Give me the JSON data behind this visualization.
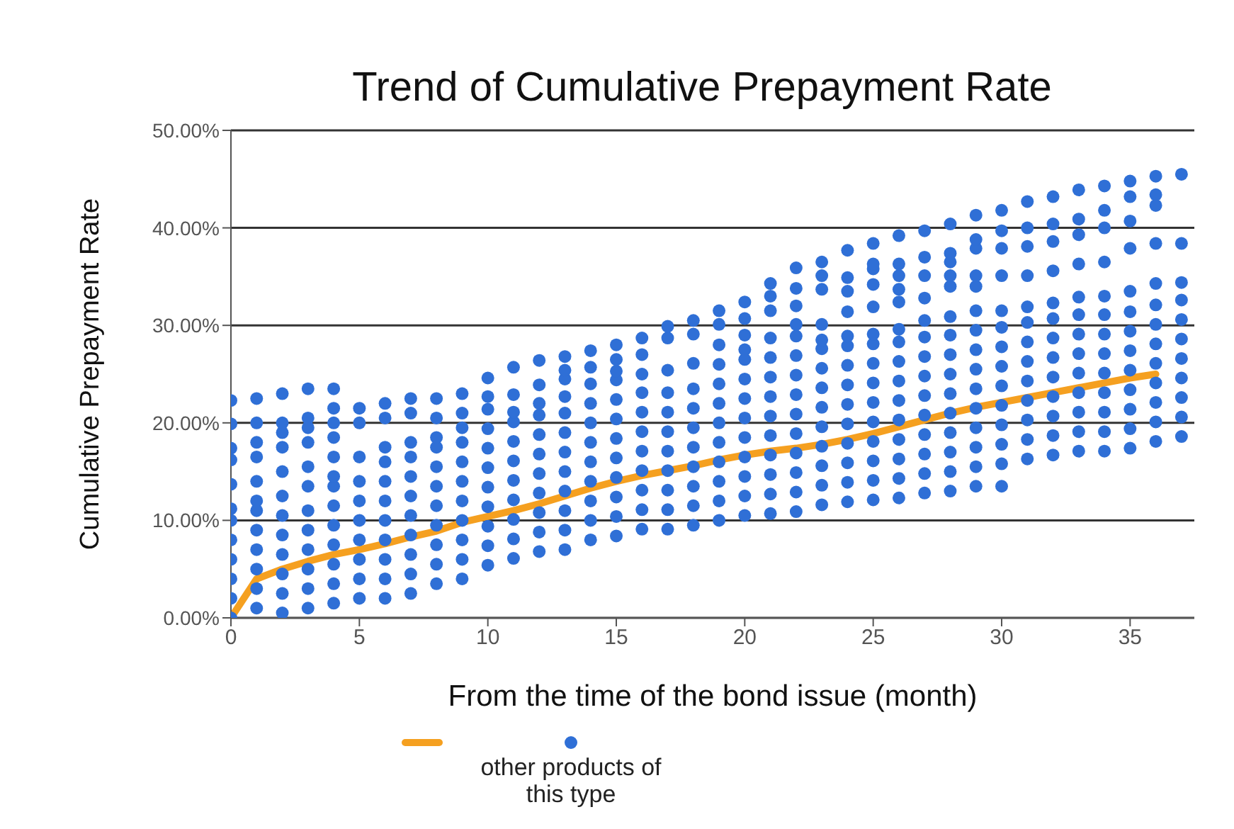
{
  "chart_data": {
    "type": "scatter",
    "title": "Trend of Cumulative Prepayment Rate",
    "xlabel": "From the time of the bond issue (month)",
    "ylabel": "Cumulative Prepayment Rate",
    "xlim": [
      0,
      37.5
    ],
    "xticks": [
      0,
      5,
      10,
      15,
      20,
      25,
      30,
      35
    ],
    "ylim": [
      0,
      50
    ],
    "yticks": [
      {
        "value": 0,
        "label": "0.00%"
      },
      {
        "value": 10,
        "label": "10.00%"
      },
      {
        "value": 20,
        "label": "20.00%"
      },
      {
        "value": 30,
        "label": "30.00%"
      },
      {
        "value": 40,
        "label": "40.00%"
      },
      {
        "value": 50,
        "label": "50.00%"
      }
    ],
    "grid": "y",
    "legend": "bottom",
    "marker": "circle",
    "series": [
      {
        "type": "line",
        "color": "#f5a020",
        "marker": "none",
        "line_style": "solid",
        "x": [
          0,
          1,
          2,
          3,
          4,
          5,
          6,
          7,
          8,
          9,
          10,
          11,
          12,
          13,
          14,
          15,
          16,
          17,
          18,
          19,
          20,
          21,
          22,
          23,
          24,
          25,
          26,
          27,
          28,
          29,
          30,
          31,
          32,
          33,
          34,
          35,
          36
        ],
        "values": [
          0,
          4,
          5,
          5.8,
          6.5,
          7,
          7.6,
          8.3,
          8.9,
          9.8,
          10.4,
          11,
          11.7,
          12.5,
          13.3,
          14,
          14.6,
          15.1,
          15.6,
          16.2,
          16.7,
          17.1,
          17.4,
          17.8,
          18.3,
          18.9,
          19.6,
          20.3,
          21,
          21.6,
          22.1,
          22.6,
          23.1,
          23.6,
          24.1,
          24.6,
          25
        ]
      },
      {
        "name": "other products of this type",
        "color": "#2f6fd6",
        "x": [
          0,
          0,
          0,
          0,
          0,
          0,
          0,
          0,
          0,
          0,
          0,
          0,
          1,
          1,
          1,
          1,
          1,
          1,
          1,
          1,
          1,
          1,
          1,
          1,
          2,
          2,
          2,
          2,
          2,
          2,
          2,
          2,
          2,
          2,
          2,
          2,
          3,
          3,
          3,
          3,
          3,
          3,
          3,
          3,
          3,
          3,
          3,
          3,
          4,
          4,
          4,
          4,
          4,
          4,
          4,
          4,
          4,
          4,
          4,
          4,
          4,
          5,
          5,
          5,
          5,
          5,
          5,
          5,
          5,
          5,
          5,
          6,
          6,
          6,
          6,
          6,
          6,
          6,
          6,
          6,
          6,
          6,
          7,
          7,
          7,
          7,
          7,
          7,
          7,
          7,
          7,
          7,
          7,
          8,
          8,
          8,
          8,
          8,
          8,
          8,
          8,
          8,
          8,
          8,
          9,
          9,
          9,
          9,
          9,
          9,
          9,
          9,
          9,
          9,
          9,
          10,
          10,
          10,
          10,
          10,
          10,
          10,
          10,
          10,
          10,
          10,
          11,
          11,
          11,
          11,
          11,
          11,
          11,
          11,
          11,
          11,
          11,
          12,
          12,
          12,
          12,
          12,
          12,
          12,
          12,
          12,
          12,
          12,
          13,
          13,
          13,
          13,
          13,
          13,
          13,
          13,
          13,
          13,
          13,
          13,
          14,
          14,
          14,
          14,
          14,
          14,
          14,
          14,
          14,
          14,
          14,
          15,
          15,
          15,
          15,
          15,
          15,
          15,
          15,
          15,
          15,
          15,
          15,
          16,
          16,
          16,
          16,
          16,
          16,
          16,
          16,
          16,
          16,
          16,
          17,
          17,
          17,
          17,
          17,
          17,
          17,
          17,
          17,
          17,
          17,
          18,
          18,
          18,
          18,
          18,
          18,
          18,
          18,
          18,
          18,
          18,
          19,
          19,
          19,
          19,
          19,
          19,
          19,
          19,
          19,
          19,
          19,
          19,
          20,
          20,
          20,
          20,
          20,
          20,
          20,
          20,
          20,
          20,
          20,
          20,
          20,
          21,
          21,
          21,
          21,
          21,
          21,
          21,
          21,
          21,
          21,
          21,
          21,
          21,
          22,
          22,
          22,
          22,
          22,
          22,
          22,
          22,
          22,
          22,
          22,
          22,
          22,
          22,
          23,
          23,
          23,
          23,
          23,
          23,
          23,
          23,
          23,
          23,
          23,
          23,
          23,
          23,
          24,
          24,
          24,
          24,
          24,
          24,
          24,
          24,
          24,
          24,
          24,
          24,
          24,
          24,
          25,
          25,
          25,
          25,
          25,
          25,
          25,
          25,
          25,
          25,
          25,
          25,
          25,
          25,
          25,
          26,
          26,
          26,
          26,
          26,
          26,
          26,
          26,
          26,
          26,
          26,
          26,
          26,
          26,
          26,
          27,
          27,
          27,
          27,
          27,
          27,
          27,
          27,
          27,
          27,
          27,
          27,
          27,
          27,
          28,
          28,
          28,
          28,
          28,
          28,
          28,
          28,
          28,
          28,
          28,
          28,
          28,
          28,
          28,
          29,
          29,
          29,
          29,
          29,
          29,
          29,
          29,
          29,
          29,
          29,
          29,
          29,
          29,
          29,
          30,
          30,
          30,
          30,
          30,
          30,
          30,
          30,
          30,
          30,
          30,
          30,
          30,
          30,
          31,
          31,
          31,
          31,
          31,
          31,
          31,
          31,
          31,
          31,
          31,
          31,
          31,
          32,
          32,
          32,
          32,
          32,
          32,
          32,
          32,
          32,
          32,
          32,
          32,
          32,
          33,
          33,
          33,
          33,
          33,
          33,
          33,
          33,
          33,
          33,
          33,
          33,
          33,
          34,
          34,
          34,
          34,
          34,
          34,
          34,
          34,
          34,
          34,
          34,
          34,
          34,
          35,
          35,
          35,
          35,
          35,
          35,
          35,
          35,
          35,
          35,
          35,
          35,
          35,
          36,
          36,
          36,
          36,
          36,
          36,
          36,
          36,
          36,
          36,
          36,
          36,
          36,
          37,
          37,
          37,
          37,
          37,
          37,
          37,
          37,
          37,
          37,
          37
        ],
        "values": [
          0,
          2,
          4,
          6,
          8,
          10,
          11.2,
          13.7,
          16.2,
          17.4,
          19.9,
          22.3,
          1,
          3,
          5,
          7,
          9,
          11,
          12,
          14,
          16.5,
          18,
          20,
          22.5,
          0.5,
          2.5,
          4.5,
          6.5,
          8.5,
          10.5,
          12.5,
          15,
          17.5,
          19,
          20,
          23,
          1,
          3,
          5,
          7,
          9,
          11,
          13.5,
          15.5,
          18,
          19.5,
          20.5,
          23.5,
          1.5,
          3.5,
          5.5,
          7.5,
          9.5,
          11.5,
          13.5,
          14.5,
          16.5,
          18.5,
          20,
          21.5,
          23.5,
          2,
          4,
          6,
          8,
          10,
          12,
          14,
          16.5,
          20,
          21.5,
          2,
          4,
          6,
          8,
          10,
          12,
          14,
          16,
          17.5,
          20.5,
          22,
          2.5,
          4.5,
          6.5,
          8.5,
          10.5,
          12.5,
          14.5,
          16.5,
          18,
          21,
          22.5,
          3.5,
          5.5,
          7.5,
          9.5,
          11.5,
          13.5,
          15.5,
          17.5,
          18.5,
          20.5,
          22.5,
          4,
          6,
          8,
          10,
          12,
          14,
          16,
          18,
          19.5,
          21,
          23,
          5.4,
          7.4,
          9.4,
          11.4,
          13.4,
          15.4,
          17.4,
          19.4,
          21.4,
          22.7,
          24.6,
          6.1,
          8.1,
          10.1,
          12.1,
          14.1,
          16.1,
          18.1,
          20.1,
          21.1,
          22.9,
          25.7,
          6.8,
          8.8,
          10.8,
          12.8,
          14.8,
          16.8,
          18.8,
          20.8,
          22,
          23.9,
          26.4,
          7,
          9,
          11,
          13,
          15,
          17,
          19,
          21,
          22.7,
          24.5,
          25.4,
          26.8,
          8,
          10,
          12,
          14,
          16,
          18,
          20,
          22,
          24,
          25.7,
          27.4,
          8.4,
          10.4,
          12.4,
          14.4,
          16.4,
          18.4,
          20.4,
          22.4,
          24.4,
          25.3,
          26.5,
          28,
          9.1,
          11.1,
          13.1,
          15.1,
          17.1,
          19.1,
          21.1,
          23.1,
          25,
          27,
          28.7,
          9.1,
          11.1,
          13.1,
          15.1,
          17.1,
          19.1,
          21.1,
          23.1,
          25.4,
          28.7,
          29.9,
          9.5,
          11.5,
          13.5,
          15.5,
          17.5,
          19.5,
          21.5,
          23.5,
          26.1,
          29.1,
          30.5,
          10,
          12,
          14,
          16,
          18,
          20,
          22,
          24,
          26,
          28,
          30.1,
          31.5,
          10.5,
          12.5,
          14.5,
          16.5,
          18.5,
          20.5,
          22.5,
          24.5,
          26.5,
          27.5,
          29,
          30.7,
          32.4,
          10.7,
          12.7,
          14.7,
          16.7,
          18.7,
          20.7,
          22.7,
          24.7,
          26.7,
          28.7,
          31.5,
          33,
          34.3,
          10.9,
          12.9,
          14.9,
          16.9,
          18.9,
          20.9,
          22.9,
          24.9,
          26.9,
          28.9,
          30.1,
          32,
          33.8,
          35.9,
          11.6,
          13.6,
          15.6,
          17.6,
          19.6,
          21.6,
          23.6,
          25.6,
          27.6,
          28.5,
          30.1,
          33.7,
          35.1,
          36.5,
          11.9,
          13.9,
          15.9,
          17.9,
          19.9,
          21.9,
          23.9,
          25.9,
          27.9,
          28.9,
          31.4,
          33.5,
          34.9,
          37.7,
          12.1,
          14.1,
          16.1,
          18.1,
          20.1,
          22.1,
          24.1,
          26.1,
          28.1,
          29.1,
          31.9,
          34.2,
          35.8,
          36.3,
          38.4,
          12.3,
          14.3,
          16.3,
          18.3,
          20.3,
          22.3,
          24.3,
          26.3,
          28.3,
          29.6,
          32.4,
          33.7,
          35.1,
          36.3,
          39.2,
          12.8,
          14.8,
          16.8,
          18.8,
          20.8,
          22.8,
          24.8,
          26.8,
          28.8,
          30.5,
          32.8,
          35.1,
          37,
          39.7,
          13,
          15,
          17,
          19,
          21,
          23,
          25,
          27,
          29,
          30.9,
          34,
          35.1,
          36.5,
          37.4,
          40.4,
          13.5,
          15.5,
          17.5,
          19.5,
          21.5,
          23.5,
          25.5,
          27.5,
          29.5,
          31.5,
          34,
          35.1,
          37.9,
          38.8,
          41.3,
          13.5,
          15.8,
          17.8,
          19.8,
          21.8,
          23.8,
          25.8,
          27.8,
          29.8,
          31.5,
          35.1,
          37.9,
          39.7,
          41.8,
          16.3,
          18.3,
          20.3,
          22.3,
          24.3,
          26.3,
          28.3,
          30.3,
          31.9,
          35.1,
          38.1,
          40,
          42.7,
          16.7,
          18.7,
          20.7,
          22.7,
          24.7,
          26.7,
          28.7,
          30.7,
          32.3,
          35.6,
          38.6,
          40.4,
          43.2,
          17.1,
          19.1,
          21.1,
          23.1,
          25.1,
          27.1,
          29.1,
          31.1,
          32.9,
          36.3,
          39.3,
          40.9,
          43.9,
          17.1,
          19.1,
          21.1,
          23.1,
          25.1,
          27.1,
          29.1,
          31.1,
          33,
          36.5,
          40,
          41.8,
          44.3,
          17.4,
          19.4,
          21.4,
          23.4,
          25.4,
          27.4,
          29.4,
          31.4,
          33.5,
          37.9,
          40.7,
          43.2,
          44.8,
          18.1,
          20.1,
          22.1,
          24.1,
          26.1,
          28.1,
          30.1,
          32.1,
          34.3,
          38.4,
          42.3,
          43.4,
          45.3,
          18.6,
          20.6,
          22.6,
          24.6,
          26.6,
          28.6,
          30.6,
          32.6,
          34.4,
          38.4,
          45.5
        ]
      }
    ]
  }
}
